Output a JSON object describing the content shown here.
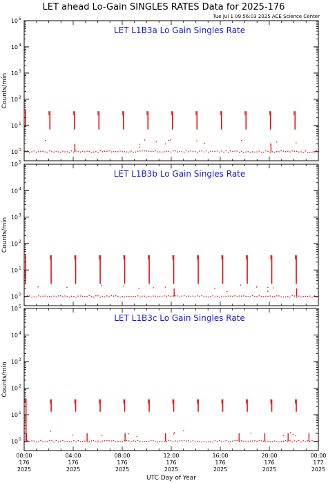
{
  "title": "LET ahead Lo-Gain SINGLES RATES Data for 2025-176",
  "timestamp": "Tue Jul  1 09:56:03 2025 ACE Science Center",
  "xlabel": "UTC Day of Year",
  "ylabel": "Counts/min",
  "colors": {
    "data": "#e01010",
    "panel_title": "#1a1ad6",
    "axes": "#000000"
  },
  "chart_data": [
    {
      "type": "scatter",
      "title": "LET L1B3a Lo Gain Singles Rate",
      "ylabel": "Counts/min",
      "yscale": "log",
      "ylim": [
        0.8,
        100000
      ],
      "xlim": [
        0,
        24
      ],
      "spike_hours": [
        0.1,
        2.1,
        4.1,
        6.1,
        8.1,
        10.1,
        12.1,
        14.1,
        16.1,
        18.1,
        20.1,
        22.1
      ],
      "spike_range": [
        7,
        35
      ],
      "spike_range_first": [
        9,
        40
      ],
      "drops_to_baseline": [
        4.1,
        20.1
      ],
      "baseline": 1
    },
    {
      "type": "scatter",
      "title": "LET L1B3b Lo Gain Singles Rate",
      "ylabel": "Counts/min",
      "yscale": "log",
      "ylim": [
        0.8,
        100000
      ],
      "xlim": [
        0,
        24
      ],
      "spike_hours": [
        0.1,
        2.2,
        4.2,
        6.2,
        8.2,
        10.2,
        12.2,
        14.2,
        16.2,
        18.2,
        20.2,
        22.2
      ],
      "spike_range": [
        3,
        36
      ],
      "spike_range_first": [
        3,
        40
      ],
      "drops_to_baseline": [
        12.2,
        22.2
      ],
      "baseline": 1
    },
    {
      "type": "scatter",
      "title": "LET L1B3c Lo Gain Singles Rate",
      "ylabel": "Counts/min",
      "yscale": "log",
      "ylim": [
        0.8,
        100000
      ],
      "xlim": [
        0,
        24
      ],
      "spike_hours": [
        0.15,
        2.2,
        4.2,
        6.2,
        8.2,
        10.2,
        12.2,
        14.2,
        16.2,
        18.2,
        20.2,
        22.2
      ],
      "spike_range": [
        13,
        38
      ],
      "spike_range_first": [
        0.9,
        40
      ],
      "drops_to_baseline": [
        0.15,
        5.1,
        8.2,
        11.5,
        17.5,
        19.6,
        21.5,
        23.2
      ],
      "baseline": 1
    }
  ],
  "x_ticks": [
    {
      "hour": 0,
      "time": "00:00",
      "doy": "176",
      "year": "2025"
    },
    {
      "hour": 4,
      "time": "04:00",
      "doy": "176",
      "year": "2025"
    },
    {
      "hour": 8,
      "time": "08:00",
      "doy": "176",
      "year": "2025"
    },
    {
      "hour": 12,
      "time": "12:00",
      "doy": "176",
      "year": "2025"
    },
    {
      "hour": 16,
      "time": "16:00",
      "doy": "176",
      "year": "2025"
    },
    {
      "hour": 20,
      "time": "20:00",
      "doy": "176",
      "year": "2025"
    },
    {
      "hour": 24,
      "time": "00:00",
      "doy": "177",
      "year": "2025"
    }
  ],
  "y_ticks": [
    0,
    1,
    2,
    3,
    4,
    5
  ]
}
